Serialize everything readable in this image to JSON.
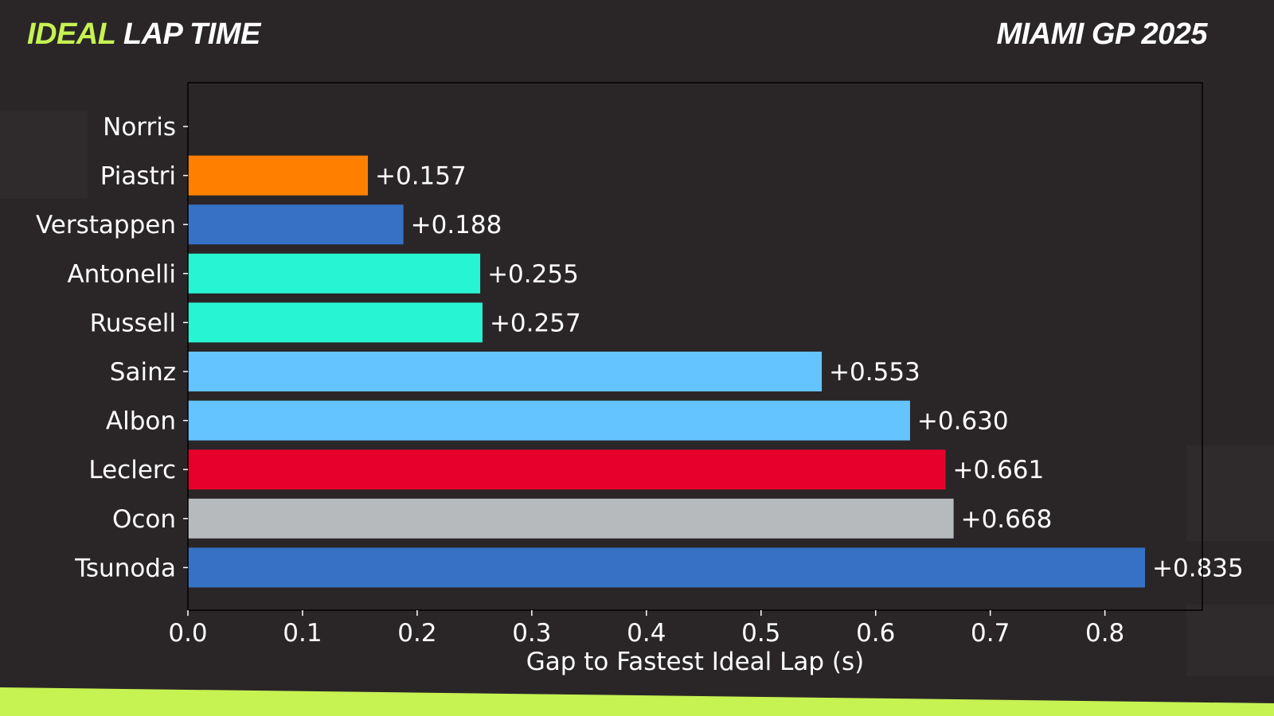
{
  "header": {
    "title_accent": "IDEAL",
    "title_rest": "LAP TIME",
    "event": "MIAMI GP 2025"
  },
  "colors": {
    "background": "#2a2627",
    "accent": "#c6f252",
    "axis": "#000000",
    "text": "#ffffff"
  },
  "chart_data": {
    "type": "bar",
    "orientation": "horizontal",
    "categories": [
      "Norris",
      "Piastri",
      "Verstappen",
      "Antonelli",
      "Russell",
      "Sainz",
      "Albon",
      "Leclerc",
      "Ocon",
      "Tsunoda"
    ],
    "values": [
      0.0,
      0.157,
      0.188,
      0.255,
      0.257,
      0.553,
      0.63,
      0.661,
      0.668,
      0.835
    ],
    "labels": [
      "",
      "+0.157",
      "+0.188",
      "+0.255",
      "+0.257",
      "+0.553",
      "+0.630",
      "+0.661",
      "+0.668",
      "+0.835"
    ],
    "bar_colors": [
      "#ff8000",
      "#ff8000",
      "#3671c6",
      "#27f4d2",
      "#27f4d2",
      "#64c4ff",
      "#64c4ff",
      "#e8002d",
      "#b6babd",
      "#3671c6"
    ],
    "xlabel": "Gap to Fastest Ideal Lap (s)",
    "ylabel": "",
    "xlim": [
      0,
      0.885
    ],
    "xticks": [
      0.0,
      0.1,
      0.2,
      0.3,
      0.4,
      0.5,
      0.6,
      0.7,
      0.8
    ],
    "xtick_labels": [
      "0.0",
      "0.1",
      "0.2",
      "0.3",
      "0.4",
      "0.5",
      "0.6",
      "0.7",
      "0.8"
    ],
    "grid": false
  }
}
